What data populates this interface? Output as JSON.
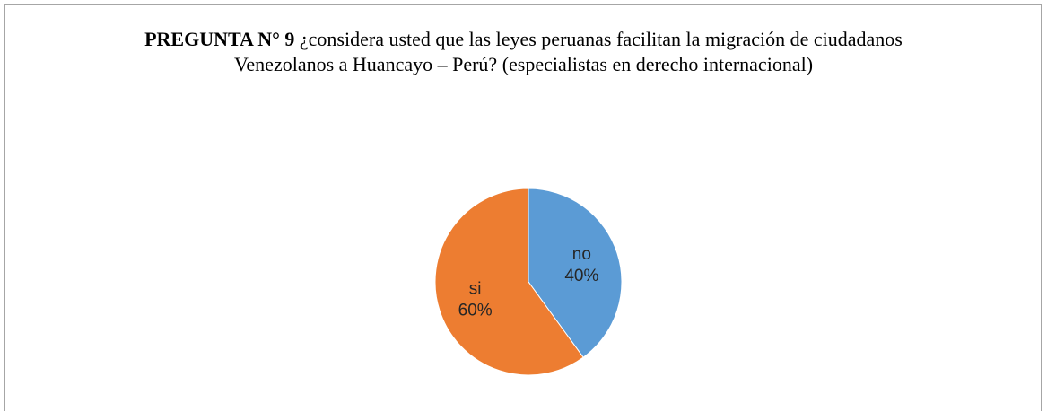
{
  "chart_data": {
    "type": "pie",
    "title": [
      "PREGUNTA N° 9",
      "¿considera usted que las leyes peruanas facilitan la migración de ciudadanos Venezolanos a Huancayo – Perú? (especialistas en derecho internacional)"
    ],
    "categories": [
      "no",
      "si"
    ],
    "values": [
      40,
      60
    ],
    "value_labels": [
      "40%",
      "60%"
    ],
    "colors": [
      "#5b9bd5",
      "#ed7d31"
    ]
  }
}
